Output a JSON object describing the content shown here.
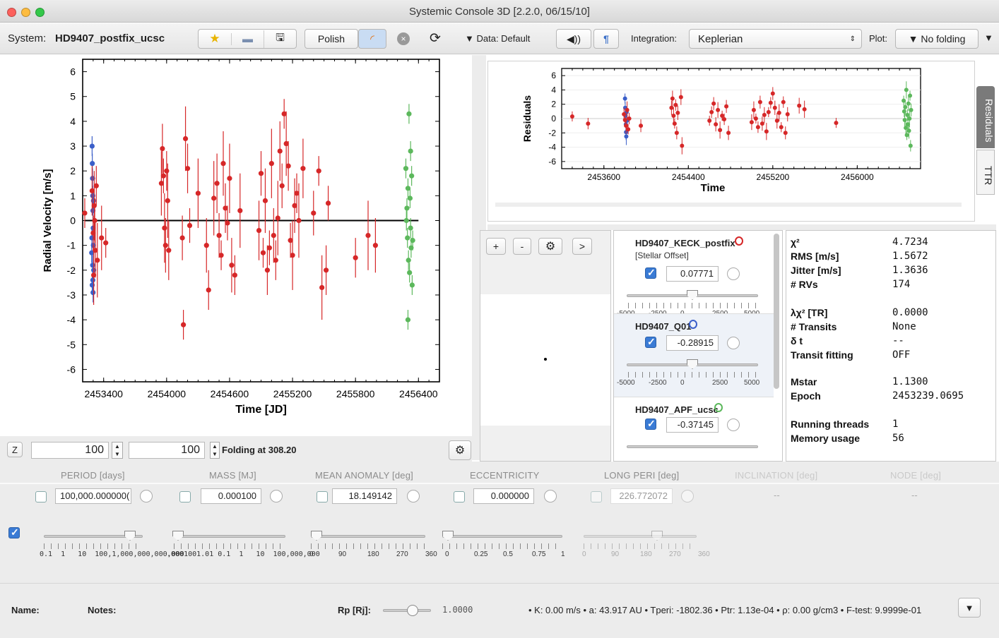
{
  "window": {
    "title": "Systemic Console 3D [2.2.0, 06/15/10]"
  },
  "toolbar": {
    "system_label": "System:",
    "system_name": "HD9407_postfix_ucsc",
    "polish": "Polish",
    "data": "▼ Data: Default",
    "integration_label": "Integration:",
    "integration_value": "Keplerian",
    "plot_label": "Plot:",
    "plot_value": "▼ No folding"
  },
  "rv_chart": {
    "ylabel": "Radial Velocity [m/s]",
    "xlabel": "Time [JD]",
    "yticks": [
      "6",
      "5",
      "4",
      "3",
      "2",
      "1",
      "0",
      "-1",
      "-2",
      "-3",
      "-4",
      "-5",
      "-6"
    ],
    "xticks": [
      "2453400",
      "2454000",
      "2454600",
      "2455200",
      "2455800",
      "2456400"
    ]
  },
  "res_chart": {
    "ylabel": "Residuals",
    "xlabel": "Time",
    "yticks": [
      "6",
      "4",
      "2",
      "0",
      "-2",
      "-4",
      "-6"
    ],
    "xticks": [
      "2453600",
      "2454400",
      "2455200",
      "2456000"
    ]
  },
  "side_tabs": {
    "residuals": "Residuals",
    "ttr": "TTR"
  },
  "chart_data": [
    {
      "type": "scatter",
      "title": "",
      "xlabel": "Time [JD]",
      "ylabel": "Radial Velocity [m/s]",
      "xlim": [
        2453200,
        2456600
      ],
      "ylim": [
        -6.5,
        6.5
      ],
      "series": [
        {
          "name": "HD9407_KECK_postfix",
          "color": "#3b5fc9",
          "points": [
            [
              2453290,
              3.0
            ],
            [
              2453292,
              2.3
            ],
            [
              2453294,
              1.7
            ],
            [
              2453296,
              1.0
            ],
            [
              2453298,
              0.4
            ],
            [
              2453300,
              -0.3
            ],
            [
              2453302,
              -1.0
            ],
            [
              2453295,
              -1.8
            ],
            [
              2453297,
              -2.4
            ],
            [
              2453299,
              -2.9
            ],
            [
              2453288,
              -0.7
            ],
            [
              2453303,
              0.8
            ],
            [
              2453286,
              -1.3
            ],
            [
              2453305,
              -2.0
            ],
            [
              2453291,
              -2.6
            ]
          ]
        },
        {
          "name": "HD9407_Q01",
          "color": "#d62728",
          "points": [
            [
              2453220,
              0.3
            ],
            [
              2453380,
              -0.7
            ],
            [
              2453290,
              1.2
            ],
            [
              2453300,
              -0.5
            ],
            [
              2453310,
              0.6
            ],
            [
              2453320,
              -1.2
            ],
            [
              2453330,
              1.4
            ],
            [
              2453340,
              -1.6
            ],
            [
              2453305,
              -2.2
            ],
            [
              2453315,
              0.0
            ],
            [
              2453420,
              -0.9
            ],
            [
              2453950,
              1.5
            ],
            [
              2453960,
              2.9
            ],
            [
              2453970,
              1.8
            ],
            [
              2453980,
              -0.3
            ],
            [
              2453990,
              -1.0
            ],
            [
              2454000,
              2.0
            ],
            [
              2454010,
              0.8
            ],
            [
              2454020,
              -1.2
            ],
            [
              2454150,
              -0.7
            ],
            [
              2454160,
              -4.2
            ],
            [
              2454180,
              3.3
            ],
            [
              2454200,
              2.1
            ],
            [
              2454220,
              -0.2
            ],
            [
              2454300,
              1.1
            ],
            [
              2454380,
              -1.0
            ],
            [
              2454400,
              -2.8
            ],
            [
              2454450,
              0.9
            ],
            [
              2454480,
              1.5
            ],
            [
              2454500,
              -0.6
            ],
            [
              2454520,
              -1.4
            ],
            [
              2454540,
              2.3
            ],
            [
              2454560,
              0.5
            ],
            [
              2454580,
              -0.1
            ],
            [
              2454600,
              1.7
            ],
            [
              2454620,
              -1.8
            ],
            [
              2454650,
              -2.2
            ],
            [
              2454700,
              0.4
            ],
            [
              2454880,
              -0.4
            ],
            [
              2454900,
              1.9
            ],
            [
              2454920,
              -1.3
            ],
            [
              2454940,
              0.8
            ],
            [
              2454960,
              -2.0
            ],
            [
              2454980,
              -1.1
            ],
            [
              2455000,
              2.3
            ],
            [
              2455020,
              -0.6
            ],
            [
              2455040,
              -1.6
            ],
            [
              2455060,
              0.1
            ],
            [
              2455080,
              2.8
            ],
            [
              2455100,
              1.4
            ],
            [
              2455120,
              4.3
            ],
            [
              2455140,
              3.1
            ],
            [
              2455160,
              2.2
            ],
            [
              2455180,
              -0.8
            ],
            [
              2455200,
              -1.4
            ],
            [
              2455220,
              0.6
            ],
            [
              2455240,
              1.1
            ],
            [
              2455260,
              0.0
            ],
            [
              2455300,
              2.1
            ],
            [
              2455400,
              0.3
            ],
            [
              2455450,
              2.0
            ],
            [
              2455480,
              -2.7
            ],
            [
              2455520,
              -2.0
            ],
            [
              2455540,
              0.7
            ],
            [
              2455920,
              -0.6
            ],
            [
              2455990,
              -1.0
            ],
            [
              2455800,
              -1.5
            ]
          ]
        },
        {
          "name": "HD9407_APF_ucsc",
          "color": "#5cb85c",
          "points": [
            [
              2456280,
              2.1
            ],
            [
              2456290,
              0.5
            ],
            [
              2456295,
              -0.7
            ],
            [
              2456300,
              1.3
            ],
            [
              2456305,
              -1.6
            ],
            [
              2456310,
              4.3
            ],
            [
              2456315,
              -2.1
            ],
            [
              2456320,
              0.9
            ],
            [
              2456325,
              -0.3
            ],
            [
              2456330,
              -1.1
            ],
            [
              2456335,
              1.8
            ],
            [
              2456340,
              -2.6
            ],
            [
              2456300,
              -4.0
            ],
            [
              2456285,
              0.0
            ],
            [
              2456345,
              -0.8
            ],
            [
              2456325,
              2.8
            ]
          ]
        }
      ]
    },
    {
      "type": "scatter",
      "title": "",
      "xlabel": "Time",
      "ylabel": "Residuals",
      "xlim": [
        2453200,
        2456600
      ],
      "ylim": [
        -7,
        7
      ],
      "series": [
        {
          "name": "HD9407_KECK_postfix",
          "color": "#3b5fc9",
          "points": [
            [
              2453800,
              2.8
            ],
            [
              2453802,
              1.5
            ],
            [
              2453805,
              0.4
            ],
            [
              2453808,
              -0.8
            ],
            [
              2453810,
              -1.9
            ],
            [
              2453812,
              -2.5
            ],
            [
              2453815,
              0.9
            ],
            [
              2453818,
              -0.3
            ]
          ]
        },
        {
          "name": "HD9407_Q01",
          "color": "#d62728",
          "points": [
            [
              2453300,
              0.3
            ],
            [
              2453450,
              -0.7
            ],
            [
              2453790,
              0.6
            ],
            [
              2453800,
              -0.2
            ],
            [
              2453810,
              -1.0
            ],
            [
              2453820,
              1.2
            ],
            [
              2453830,
              -1.5
            ],
            [
              2453840,
              0.0
            ],
            [
              2453950,
              -1.0
            ],
            [
              2454240,
              1.5
            ],
            [
              2454250,
              2.8
            ],
            [
              2454260,
              0.4
            ],
            [
              2454270,
              -0.7
            ],
            [
              2454280,
              1.9
            ],
            [
              2454290,
              -2.0
            ],
            [
              2454300,
              0.8
            ],
            [
              2454330,
              3.0
            ],
            [
              2454340,
              -3.8
            ],
            [
              2454600,
              -0.3
            ],
            [
              2454620,
              0.9
            ],
            [
              2454640,
              2.1
            ],
            [
              2454660,
              -0.8
            ],
            [
              2454680,
              1.2
            ],
            [
              2454700,
              -1.6
            ],
            [
              2454720,
              0.4
            ],
            [
              2454740,
              -0.1
            ],
            [
              2454760,
              1.7
            ],
            [
              2454780,
              -2.0
            ],
            [
              2455000,
              -0.5
            ],
            [
              2455020,
              1.2
            ],
            [
              2455040,
              0.0
            ],
            [
              2455060,
              -1.2
            ],
            [
              2455080,
              2.3
            ],
            [
              2455100,
              -0.7
            ],
            [
              2455120,
              0.5
            ],
            [
              2455140,
              -1.8
            ],
            [
              2455160,
              0.9
            ],
            [
              2455180,
              2.2
            ],
            [
              2455200,
              3.5
            ],
            [
              2455220,
              1.5
            ],
            [
              2455240,
              -0.3
            ],
            [
              2455260,
              0.8
            ],
            [
              2455280,
              -1.2
            ],
            [
              2455300,
              2.3
            ],
            [
              2455320,
              -2.0
            ],
            [
              2455340,
              0.6
            ],
            [
              2455450,
              1.8
            ],
            [
              2455500,
              1.3
            ],
            [
              2455800,
              -0.6
            ]
          ]
        },
        {
          "name": "HD9407_APF_ucsc",
          "color": "#5cb85c",
          "points": [
            [
              2456440,
              2.5
            ],
            [
              2456445,
              1.0
            ],
            [
              2456450,
              -0.2
            ],
            [
              2456455,
              1.6
            ],
            [
              2456460,
              -1.3
            ],
            [
              2456465,
              4.0
            ],
            [
              2456470,
              -2.3
            ],
            [
              2456475,
              0.5
            ],
            [
              2456480,
              -0.8
            ],
            [
              2456485,
              2.1
            ],
            [
              2456490,
              -1.7
            ],
            [
              2456495,
              0.0
            ],
            [
              2456500,
              3.2
            ],
            [
              2456505,
              -3.8
            ],
            [
              2456510,
              1.2
            ]
          ]
        }
      ]
    }
  ],
  "folding": {
    "z": "Z",
    "from": "100",
    "to": "100",
    "label": "Folding at 308.20"
  },
  "planet_toolbar": {
    "add": "+",
    "remove": "-",
    "next": ">"
  },
  "datasets": [
    {
      "name": "HD9407_KECK_postfix",
      "color": "#d62728",
      "sub": "[Stellar Offset]",
      "value": "0.07771",
      "ticks": [
        "-5000",
        "-2500",
        "0",
        "2500",
        "5000"
      ]
    },
    {
      "name": "HD9407_Q01",
      "color": "#3b5fc9",
      "sub": "",
      "value": "-0.28915",
      "ticks": [
        "-5000",
        "-2500",
        "0",
        "2500",
        "5000"
      ]
    },
    {
      "name": "HD9407_APF_ucsc",
      "color": "#5cb85c",
      "sub": "",
      "value": "-0.37145",
      "ticks": []
    }
  ],
  "stats": [
    {
      "label": "χ²",
      "value": "4.7234"
    },
    {
      "label": "RMS [m/s]",
      "value": "1.5672"
    },
    {
      "label": "Jitter [m/s]",
      "value": "1.3636"
    },
    {
      "label": "# RVs",
      "value": "174"
    },
    {
      "label": "λχ² [TR]",
      "value": "0.0000"
    },
    {
      "label": "# Transits",
      "value": "None"
    },
    {
      "label": "δ t",
      "value": "--"
    },
    {
      "label": "Transit fitting",
      "value": "OFF"
    },
    {
      "label": "Mstar",
      "value": "1.1300"
    },
    {
      "label": "Epoch",
      "value": "2453239.0695"
    },
    {
      "label": "Running threads",
      "value": "1"
    },
    {
      "label": "Memory usage",
      "value": "56"
    }
  ],
  "params": {
    "headers": [
      "PERIOD [days]",
      "MASS [MJ]",
      "MEAN ANOMALY [deg]",
      "ECCENTRICITY",
      "LONG PERI [deg]",
      "INCLINATION [deg]",
      "NODE [deg]"
    ],
    "values": [
      "100,000.000000(",
      "0.000100",
      "18.149142",
      "0.000000",
      "226.772072",
      "--",
      "--"
    ],
    "period_ticks": "0.1  1   10  100,1,000,000,000,000",
    "mass_ticks": ".0001001.01 0.1  1   10  100,000,000",
    "ma_ticks": [
      "0",
      "90",
      "180",
      "270",
      "360"
    ],
    "ecc_ticks": [
      "0",
      "0.25",
      "0.5",
      "0.75",
      "1"
    ],
    "peri_ticks": [
      "0",
      "90",
      "180",
      "270",
      "360"
    ]
  },
  "footer": {
    "name_label": "Name:",
    "notes_label": "Notes:",
    "rp_label": "Rp [Rj]:",
    "rp_value": "1.0000",
    "summary": "• K: 0.00 m/s • a: 43.917 AU • Tperi: -1802.36 • Ptr: 1.13e-04 • ρ: 0.00 g/cm3 • F-test: 9.9999e-01",
    "menu": "▼"
  }
}
